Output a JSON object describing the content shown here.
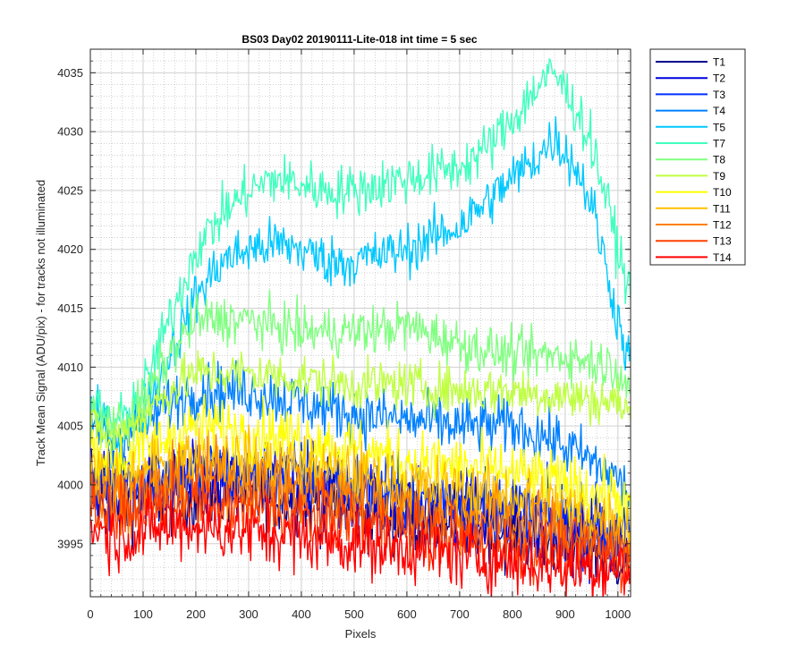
{
  "chart_data": {
    "type": "line",
    "title": "BS03 Day02 20190111-Lite-018 int time = 5 sec",
    "xlabel": "Pixels",
    "ylabel": "Track Mean Signal (ADU/pix) - for tracks not illuminated",
    "xlim": [
      0,
      1024
    ],
    "ylim": [
      3990.5,
      4037
    ],
    "xticks": [
      0,
      100,
      200,
      300,
      400,
      500,
      600,
      700,
      800,
      900,
      1000
    ],
    "yticks": [
      3995,
      4000,
      4005,
      4010,
      4015,
      4020,
      4025,
      4030,
      4035
    ],
    "grid": "major and minor, dotted",
    "legend_position": "outside top-right",
    "series": [
      {
        "name": "T1",
        "color": "#00008f",
        "noise": 2.6,
        "x": [
          0,
          50,
          100,
          200,
          300,
          400,
          500,
          600,
          700,
          800,
          900,
          1000,
          1024
        ],
        "y": [
          3999,
          3998,
          3999,
          3999,
          3999,
          3999,
          3998,
          3997,
          3997,
          3996,
          3995,
          3994,
          3994
        ]
      },
      {
        "name": "T2",
        "color": "#0000df",
        "noise": 2.6,
        "x": [
          0,
          50,
          100,
          200,
          300,
          400,
          500,
          600,
          700,
          800,
          900,
          1000,
          1024
        ],
        "y": [
          4000,
          3999,
          4000,
          4000,
          4000,
          4000,
          3999,
          3998,
          3998,
          3997,
          3996,
          3995,
          3995
        ]
      },
      {
        "name": "T3",
        "color": "#0030ff",
        "noise": 2.6,
        "x": [
          0,
          50,
          100,
          200,
          300,
          400,
          500,
          600,
          700,
          800,
          900,
          1000,
          1024
        ],
        "y": [
          4001,
          4000,
          4001,
          4001,
          4001,
          4001,
          4000,
          3999,
          3999,
          3998,
          3997,
          3996,
          3996
        ]
      },
      {
        "name": "T4",
        "color": "#0080ff",
        "noise": 2.0,
        "x": [
          0,
          50,
          100,
          150,
          200,
          300,
          400,
          500,
          600,
          700,
          800,
          870,
          950,
          1000,
          1024
        ],
        "y": [
          4005,
          4004,
          4005,
          4007,
          4008,
          4008,
          4007,
          4006,
          4005.5,
          4005,
          4005,
          4004,
          4002,
          4000.5,
          3999
        ]
      },
      {
        "name": "T5",
        "color": "#00c8ff",
        "noise": 1.8,
        "x": [
          0,
          50,
          100,
          150,
          200,
          250,
          300,
          350,
          400,
          450,
          500,
          550,
          600,
          650,
          700,
          750,
          800,
          850,
          880,
          920,
          950,
          980,
          1000,
          1024
        ],
        "y": [
          4006,
          4004,
          4006,
          4011,
          4016,
          4019,
          4020,
          4020.5,
          4020,
          4019,
          4019,
          4019.5,
          4020,
          4021,
          4022,
          4024,
          4026,
          4028,
          4029.5,
          4027,
          4024,
          4018,
          4014,
          4010
        ]
      },
      {
        "name": "T7",
        "color": "#40ffbf",
        "noise": 1.8,
        "x": [
          0,
          50,
          100,
          150,
          200,
          250,
          300,
          350,
          400,
          450,
          500,
          550,
          600,
          650,
          700,
          750,
          800,
          850,
          880,
          920,
          950,
          980,
          1000,
          1024
        ],
        "y": [
          4007,
          4005,
          4008,
          4014,
          4020,
          4023,
          4025,
          4026,
          4025.5,
          4025,
          4025,
          4025.5,
          4026,
          4026.5,
          4027,
          4028.5,
          4031,
          4034,
          4035,
          4032,
          4029,
          4024,
          4020,
          4016
        ]
      },
      {
        "name": "T8",
        "color": "#80ff80",
        "noise": 1.7,
        "x": [
          0,
          50,
          100,
          150,
          200,
          300,
          400,
          500,
          600,
          700,
          800,
          900,
          1000,
          1024
        ],
        "y": [
          4006,
          4005,
          4007,
          4011,
          4014,
          4014,
          4013,
          4013,
          4013.5,
          4012,
          4011,
          4011,
          4010,
          4008
        ]
      },
      {
        "name": "T9",
        "color": "#bfff40",
        "noise": 1.7,
        "x": [
          0,
          50,
          100,
          150,
          200,
          300,
          400,
          500,
          600,
          700,
          800,
          900,
          1000,
          1024
        ],
        "y": [
          4005,
          4004,
          4006,
          4008,
          4009.5,
          4009.5,
          4009,
          4008.5,
          4008.5,
          4008,
          4008,
          4007.5,
          4007,
          4006
        ]
      },
      {
        "name": "T10",
        "color": "#ffff00",
        "noise": 2.2,
        "x": [
          0,
          50,
          100,
          150,
          200,
          300,
          400,
          500,
          600,
          700,
          800,
          900,
          1000,
          1024
        ],
        "y": [
          4003,
          4002,
          4003,
          4004,
          4005,
          4004.5,
          4004,
          4003,
          4002,
          4001.5,
          4001,
          4000,
          3999,
          3997
        ]
      },
      {
        "name": "T11",
        "color": "#ffbf00",
        "noise": 2.2,
        "x": [
          0,
          50,
          100,
          150,
          200,
          300,
          400,
          500,
          600,
          700,
          800,
          900,
          1000,
          1024
        ],
        "y": [
          4001.5,
          4000,
          4001,
          4002,
          4002.5,
          4002,
          4001.5,
          4001,
          4000,
          3999.5,
          3999,
          3998,
          3997,
          3996
        ]
      },
      {
        "name": "T12",
        "color": "#ff8000",
        "noise": 2.3,
        "x": [
          0,
          50,
          100,
          150,
          200,
          250,
          300,
          400,
          500,
          600,
          700,
          800,
          900,
          1000,
          1024
        ],
        "y": [
          4000,
          3999,
          3999.5,
          4000,
          4000.5,
          4001,
          4000,
          3999.5,
          3999,
          3998,
          3997.5,
          3997,
          3996,
          3995,
          3995
        ]
      },
      {
        "name": "T13",
        "color": "#ff4000",
        "noise": 2.3,
        "x": [
          0,
          50,
          100,
          150,
          200,
          300,
          400,
          500,
          600,
          700,
          800,
          900,
          1000,
          1024
        ],
        "y": [
          3998.5,
          3997.5,
          3998,
          3998.5,
          3998.5,
          3998,
          3997.5,
          3997,
          3996,
          3995.5,
          3995,
          3994.5,
          3994,
          3993.5
        ]
      },
      {
        "name": "T14",
        "color": "#ff0000",
        "noise": 2.3,
        "x": [
          0,
          50,
          100,
          150,
          200,
          300,
          400,
          500,
          600,
          700,
          800,
          900,
          1000,
          1024
        ],
        "y": [
          3996.5,
          3995.5,
          3996,
          3996.5,
          3996.5,
          3996,
          3995.5,
          3995,
          3994.5,
          3994,
          3993.5,
          3993,
          3993,
          3992.5
        ]
      }
    ]
  }
}
